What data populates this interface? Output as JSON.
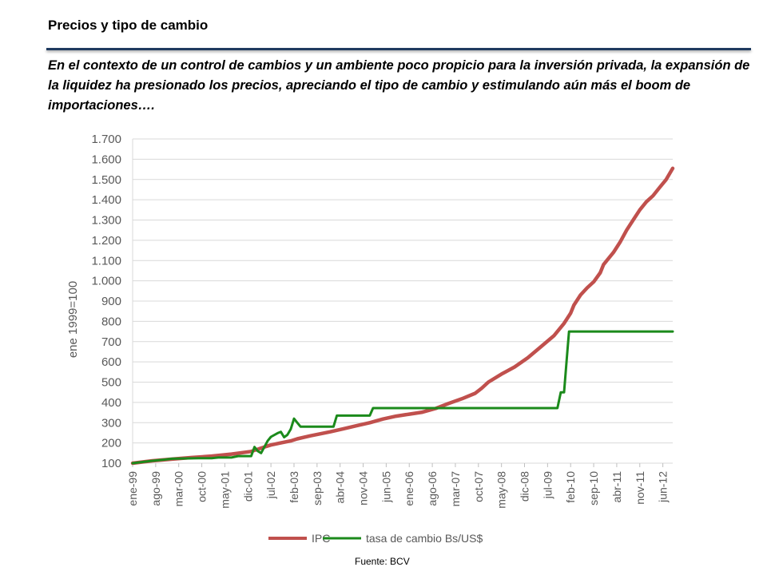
{
  "slide": {
    "title": "Precios y tipo de cambio",
    "intro": "En el contexto de un control de cambios y un ambiente poco propicio para la inversión privada, la expansión de la liquidez ha presionado los precios, apreciando el tipo de cambio y estimulando aún más el boom de importaciones….",
    "source": "Fuente: BCV"
  },
  "colors": {
    "ipc": "#c0504d",
    "tasa": "#1b8a1b",
    "grid": "#d9d9d9",
    "rule": "#1f3a5f"
  },
  "chart_data": {
    "type": "line",
    "title": "",
    "xlabel": "",
    "ylabel": "ene 1999=100",
    "ylim": [
      100,
      1700
    ],
    "xlim": [
      0,
      164
    ],
    "grid": true,
    "legend_position": "bottom",
    "yticks": [
      "100",
      "200",
      "300",
      "400",
      "500",
      "600",
      "700",
      "800",
      "900",
      "1.000",
      "1.100",
      "1.200",
      "1.300",
      "1.400",
      "1.500",
      "1.600",
      "1.700"
    ],
    "ytick_values": [
      100,
      200,
      300,
      400,
      500,
      600,
      700,
      800,
      900,
      1000,
      1100,
      1200,
      1300,
      1400,
      1500,
      1600,
      1700
    ],
    "xticks": [
      "ene-99",
      "ago-99",
      "mar-00",
      "oct-00",
      "may-01",
      "dic-01",
      "jul-02",
      "feb-03",
      "sep-03",
      "abr-04",
      "nov-04",
      "jun-05",
      "ene-06",
      "ago-06",
      "mar-07",
      "oct-07",
      "may-08",
      "dic-08",
      "jul-09",
      "feb-10",
      "sep-10",
      "abr-11",
      "nov-11",
      "jun-12"
    ],
    "xtick_positions": [
      0,
      7,
      14,
      21,
      28,
      35,
      42,
      49,
      56,
      63,
      70,
      77,
      84,
      91,
      98,
      105,
      112,
      119,
      126,
      133,
      140,
      147,
      154,
      161
    ],
    "series": [
      {
        "name": "IPC",
        "points": [
          [
            0,
            100
          ],
          [
            6,
            112
          ],
          [
            12,
            120
          ],
          [
            18,
            128
          ],
          [
            24,
            135
          ],
          [
            30,
            145
          ],
          [
            36,
            158
          ],
          [
            40,
            180
          ],
          [
            42,
            190
          ],
          [
            45,
            200
          ],
          [
            48,
            210
          ],
          [
            50,
            220
          ],
          [
            54,
            235
          ],
          [
            57,
            245
          ],
          [
            60,
            255
          ],
          [
            64,
            270
          ],
          [
            68,
            285
          ],
          [
            72,
            300
          ],
          [
            76,
            318
          ],
          [
            80,
            332
          ],
          [
            84,
            342
          ],
          [
            88,
            352
          ],
          [
            92,
            370
          ],
          [
            96,
            395
          ],
          [
            100,
            418
          ],
          [
            104,
            445
          ],
          [
            106,
            470
          ],
          [
            108,
            500
          ],
          [
            112,
            540
          ],
          [
            116,
            575
          ],
          [
            120,
            620
          ],
          [
            124,
            675
          ],
          [
            128,
            730
          ],
          [
            131,
            790
          ],
          [
            133,
            840
          ],
          [
            134,
            880
          ],
          [
            136,
            930
          ],
          [
            138,
            965
          ],
          [
            140,
            995
          ],
          [
            142,
            1040
          ],
          [
            143,
            1080
          ],
          [
            146,
            1140
          ],
          [
            148,
            1190
          ],
          [
            150,
            1250
          ],
          [
            152,
            1300
          ],
          [
            154,
            1350
          ],
          [
            156,
            1390
          ],
          [
            158,
            1420
          ],
          [
            160,
            1460
          ],
          [
            162,
            1500
          ],
          [
            164,
            1555
          ]
        ]
      },
      {
        "name": "tasa de cambio Bs/US$",
        "points": [
          [
            0,
            100
          ],
          [
            6,
            112
          ],
          [
            10,
            118
          ],
          [
            12,
            122
          ],
          [
            20,
            125
          ],
          [
            24,
            125
          ],
          [
            26,
            128
          ],
          [
            30,
            128
          ],
          [
            32,
            135
          ],
          [
            36,
            135
          ],
          [
            37,
            180
          ],
          [
            38,
            160
          ],
          [
            39,
            150
          ],
          [
            41,
            210
          ],
          [
            42,
            230
          ],
          [
            44,
            248
          ],
          [
            45,
            255
          ],
          [
            46,
            228
          ],
          [
            47,
            240
          ],
          [
            48,
            268
          ],
          [
            49,
            320
          ],
          [
            50,
            300
          ],
          [
            51,
            280
          ],
          [
            60,
            280
          ],
          [
            61,
            280
          ],
          [
            62,
            335
          ],
          [
            72,
            335
          ],
          [
            73,
            372
          ],
          [
            129,
            372
          ],
          [
            130,
            450
          ],
          [
            131,
            450
          ],
          [
            132,
            650
          ],
          [
            132.5,
            750
          ],
          [
            164,
            750
          ]
        ]
      }
    ]
  }
}
